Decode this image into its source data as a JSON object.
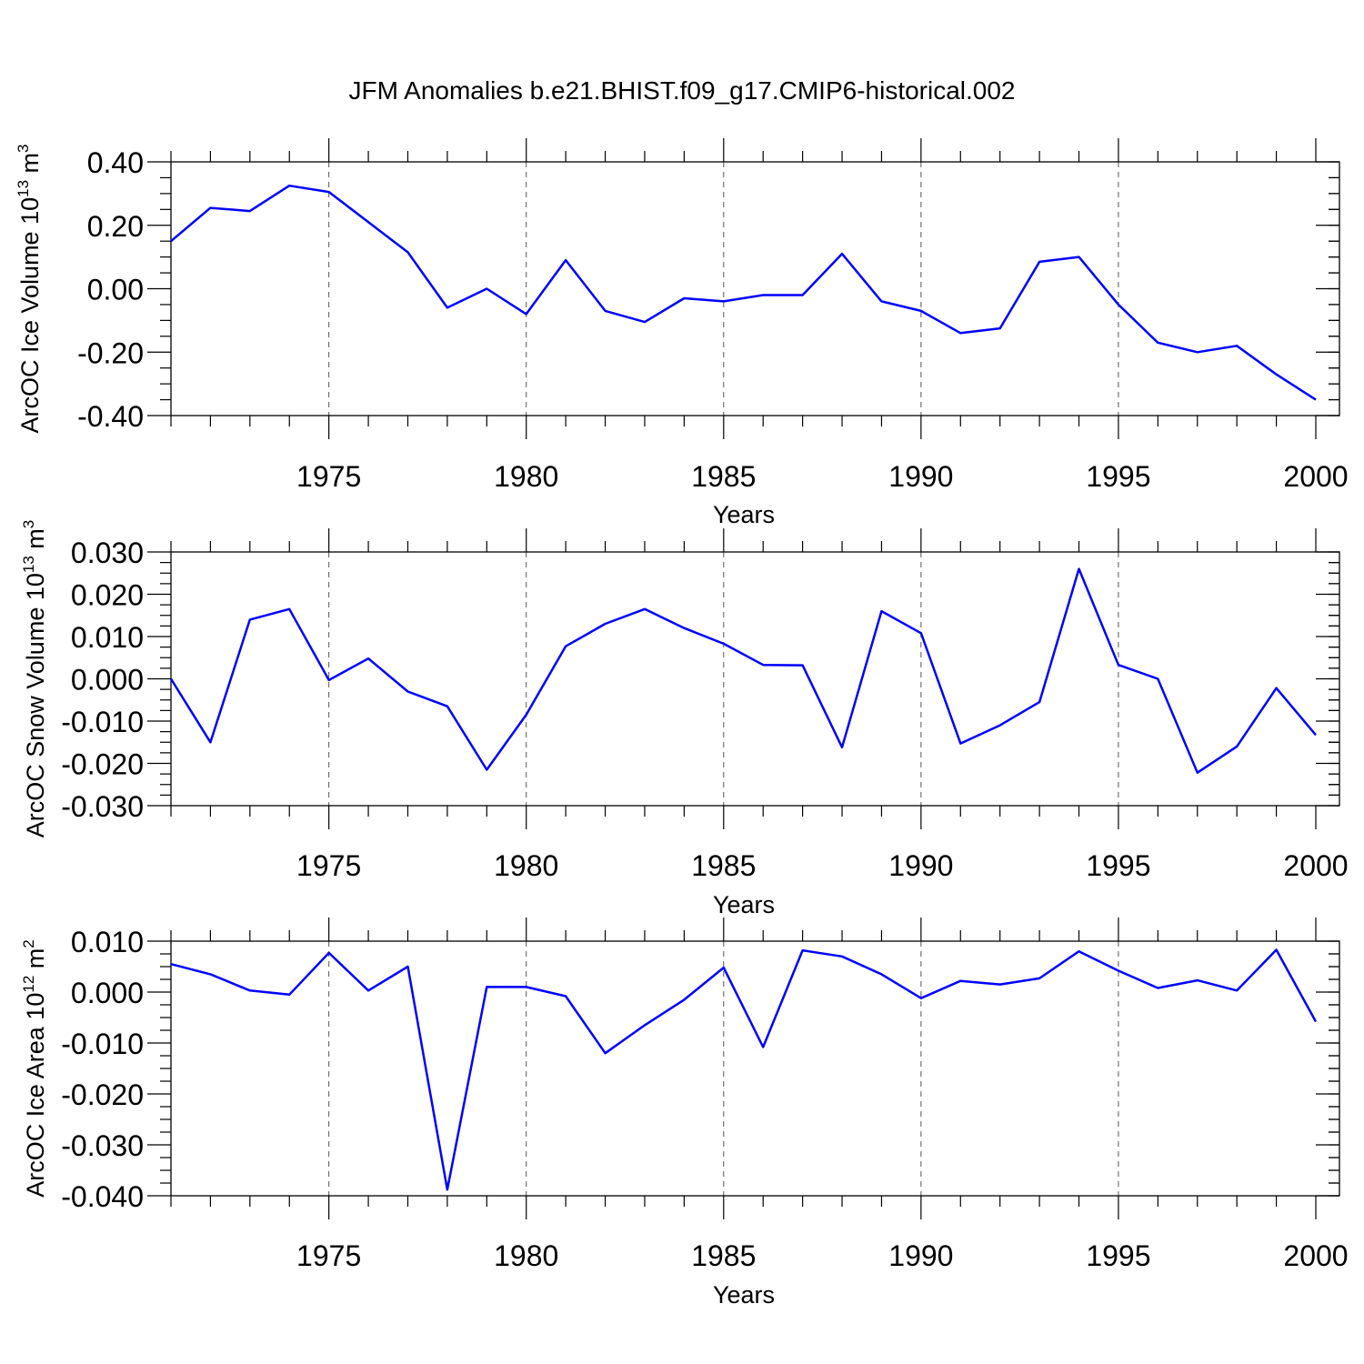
{
  "title": "JFM Anomalies b.e21.BHIST.f09_g17.CMIP6-historical.002",
  "chart_data": [
    {
      "type": "line",
      "xlabel": "Years",
      "ylabel": "ArcOC Ice Volume 10",
      "ylabel_exp": "13",
      "ylabel_unit": " m",
      "ylabel_unit_exp": "3",
      "xlim": [
        1971,
        2000
      ],
      "ylim": [
        -0.4,
        0.4
      ],
      "x_ticks": [
        1975,
        1980,
        1985,
        1990,
        1995,
        2000
      ],
      "y_ticks": [
        0.4,
        0.2,
        0.0,
        -0.2,
        -0.4
      ],
      "y_tick_labels": [
        "0.40",
        "0.20",
        "0.00",
        "-0.20",
        "-0.40"
      ],
      "y_minor_step": 0.05,
      "grid": "vertical dashed at major x ticks",
      "color": "#0000ff",
      "x": [
        1971,
        1972,
        1973,
        1974,
        1975,
        1976,
        1977,
        1978,
        1979,
        1980,
        1981,
        1982,
        1983,
        1984,
        1985,
        1986,
        1987,
        1988,
        1989,
        1990,
        1991,
        1992,
        1993,
        1994,
        1995,
        1996,
        1997,
        1998,
        1999,
        2000
      ],
      "values": [
        0.15,
        0.255,
        0.245,
        0.325,
        0.305,
        0.21,
        0.115,
        -0.06,
        0.0,
        -0.08,
        0.09,
        -0.07,
        -0.105,
        -0.03,
        -0.04,
        -0.02,
        -0.02,
        0.11,
        -0.04,
        -0.07,
        -0.14,
        -0.125,
        0.085,
        0.1,
        -0.05,
        -0.17,
        -0.2,
        -0.18,
        -0.27,
        -0.35
      ]
    },
    {
      "type": "line",
      "xlabel": "Years",
      "ylabel": "ArcOC Snow Volume 10",
      "ylabel_exp": "13",
      "ylabel_unit": " m",
      "ylabel_unit_exp": "3",
      "xlim": [
        1971,
        2000
      ],
      "ylim": [
        -0.03,
        0.03
      ],
      "x_ticks": [
        1975,
        1980,
        1985,
        1990,
        1995,
        2000
      ],
      "y_ticks": [
        0.03,
        0.02,
        0.01,
        0.0,
        -0.01,
        -0.02,
        -0.03
      ],
      "y_tick_labels": [
        "0.030",
        "0.020",
        "0.010",
        "0.000",
        "-0.010",
        "-0.020",
        "-0.030"
      ],
      "y_minor_step": 0.0025,
      "grid": "vertical dashed at major x ticks",
      "color": "#0000ff",
      "x": [
        1971,
        1972,
        1973,
        1974,
        1975,
        1976,
        1977,
        1978,
        1979,
        1980,
        1981,
        1982,
        1983,
        1984,
        1985,
        1986,
        1987,
        1988,
        1989,
        1990,
        1991,
        1992,
        1993,
        1994,
        1995,
        1996,
        1997,
        1998,
        1999,
        2000
      ],
      "values": [
        0.0,
        -0.015,
        0.014,
        0.0165,
        -0.0003,
        0.0048,
        -0.003,
        -0.0065,
        -0.0215,
        -0.0085,
        0.0077,
        0.013,
        0.0165,
        0.012,
        0.0083,
        0.0033,
        0.0032,
        -0.0162,
        0.016,
        0.0108,
        -0.0153,
        -0.011,
        -0.0055,
        0.026,
        0.0033,
        0.0,
        -0.0222,
        -0.016,
        -0.0022,
        -0.0133
      ]
    },
    {
      "type": "line",
      "xlabel": "Years",
      "ylabel": "ArcOC Ice Area 10",
      "ylabel_exp": "12",
      "ylabel_unit": " m",
      "ylabel_unit_exp": "2",
      "xlim": [
        1971,
        2000
      ],
      "ylim": [
        -0.04,
        0.01
      ],
      "x_ticks": [
        1975,
        1980,
        1985,
        1990,
        1995,
        2000
      ],
      "y_ticks": [
        0.01,
        0.0,
        -0.01,
        -0.02,
        -0.03,
        -0.04
      ],
      "y_tick_labels": [
        "0.010",
        "0.000",
        "-0.010",
        "-0.020",
        "-0.030",
        "-0.040"
      ],
      "y_minor_step": 0.0025,
      "grid": "vertical dashed at major x ticks",
      "color": "#0000ff",
      "x": [
        1971,
        1972,
        1973,
        1974,
        1975,
        1976,
        1977,
        1978,
        1979,
        1980,
        1981,
        1982,
        1983,
        1984,
        1985,
        1986,
        1987,
        1988,
        1989,
        1990,
        1991,
        1992,
        1993,
        1994,
        1995,
        1996,
        1997,
        1998,
        1999,
        2000
      ],
      "values": [
        0.0055,
        0.0035,
        0.0003,
        -0.0005,
        0.0077,
        0.0003,
        0.005,
        -0.0388,
        0.001,
        0.001,
        -0.0008,
        -0.012,
        -0.0065,
        -0.0015,
        0.0048,
        -0.0108,
        0.0082,
        0.007,
        0.0035,
        -0.0012,
        0.0022,
        0.0015,
        0.0027,
        0.008,
        0.0042,
        0.0008,
        0.0023,
        0.0003,
        0.0083,
        -0.0058
      ]
    }
  ]
}
